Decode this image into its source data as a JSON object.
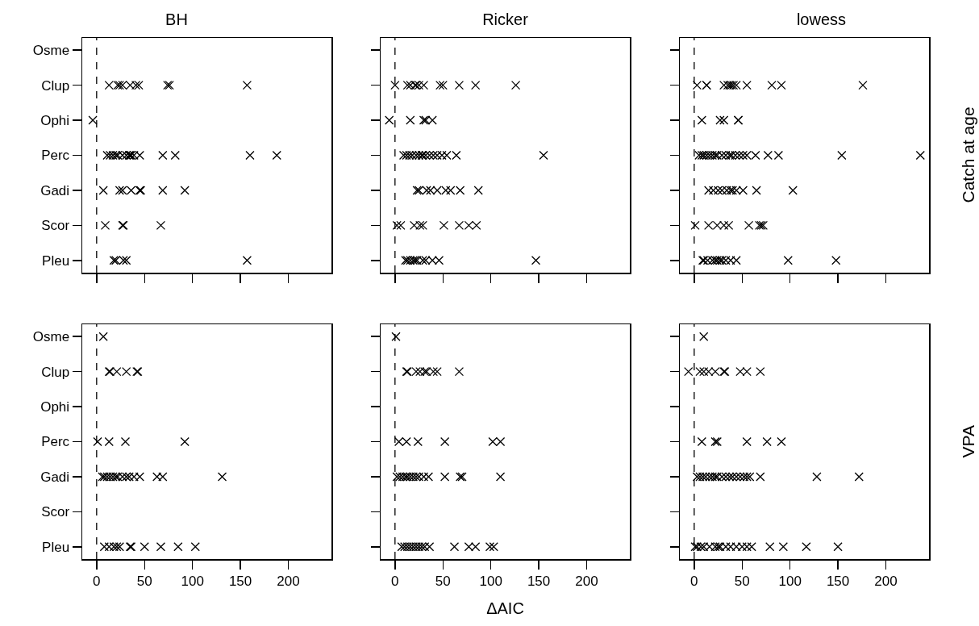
{
  "chart_data": [
    {
      "type": "scatter",
      "title": "BH",
      "orientation": "horizontal",
      "tick_labels": "y",
      "categories": [
        "Osme",
        "Clup",
        "Ophi",
        "Perc",
        "Gadi",
        "Scor",
        "Pleu"
      ],
      "xlim": [
        -15,
        245
      ],
      "xticks": [
        {
          "value": 0,
          "label": null
        },
        {
          "value": 50,
          "label": null
        },
        {
          "value": 100,
          "label": null
        },
        {
          "value": 150,
          "label": null
        },
        {
          "value": 200,
          "label": null
        }
      ],
      "grid": false,
      "marker": "cross",
      "ref_lines": [
        {
          "axis": "x",
          "value": 0,
          "line_style": "dashed"
        }
      ],
      "series": [
        {
          "color": "#000000",
          "values": [
            13,
            22,
            24,
            27,
            35,
            41,
            44,
            74,
            76,
            157,
            -4,
            11,
            14,
            17,
            20,
            22,
            27,
            31,
            34,
            35,
            36,
            39,
            45,
            69,
            82,
            160,
            188,
            7,
            24,
            27,
            36,
            45,
            46,
            69,
            92,
            9,
            27,
            28,
            67,
            18,
            20,
            28,
            31,
            157
          ],
          "x": [
            "Clup",
            "Clup",
            "Clup",
            "Clup",
            "Clup",
            "Clup",
            "Clup",
            "Clup",
            "Clup",
            "Clup",
            "Ophi",
            "Perc",
            "Perc",
            "Perc",
            "Perc",
            "Perc",
            "Perc",
            "Perc",
            "Perc",
            "Perc",
            "Perc",
            "Perc",
            "Perc",
            "Perc",
            "Perc",
            "Perc",
            "Perc",
            "Gadi",
            "Gadi",
            "Gadi",
            "Gadi",
            "Gadi",
            "Gadi",
            "Gadi",
            "Gadi",
            "Scor",
            "Scor",
            "Scor",
            "Scor",
            "Pleu",
            "Pleu",
            "Pleu",
            "Pleu",
            "Pleu"
          ]
        }
      ]
    },
    {
      "type": "scatter",
      "title": "Ricker",
      "orientation": "horizontal",
      "tick_labels": false,
      "categories": [
        "Osme",
        "Clup",
        "Ophi",
        "Perc",
        "Gadi",
        "Scor",
        "Pleu"
      ],
      "xlim": [
        -15,
        245
      ],
      "xticks": [
        {
          "value": 0,
          "label": null
        },
        {
          "value": 50,
          "label": null
        },
        {
          "value": 100,
          "label": null
        },
        {
          "value": 150,
          "label": null
        },
        {
          "value": 200,
          "label": null
        }
      ],
      "grid": false,
      "marker": "cross",
      "ref_lines": [
        {
          "axis": "x",
          "value": 0,
          "line_style": "dashed"
        }
      ],
      "series": [
        {
          "color": "#000000",
          "values": [
            0,
            13,
            16,
            21,
            22,
            25,
            30,
            47,
            50,
            67,
            84,
            126,
            -6,
            16,
            30,
            32,
            39,
            9,
            12,
            15,
            18,
            22,
            25,
            28,
            29,
            32,
            36,
            40,
            44,
            49,
            54,
            64,
            155,
            23,
            25,
            33,
            37,
            44,
            53,
            58,
            68,
            87,
            2,
            6,
            20,
            26,
            29,
            51,
            67,
            77,
            85,
            11,
            13,
            16,
            19,
            21,
            23,
            29,
            32,
            39,
            46,
            147
          ],
          "x": [
            "Clup",
            "Clup",
            "Clup",
            "Clup",
            "Clup",
            "Clup",
            "Clup",
            "Clup",
            "Clup",
            "Clup",
            "Clup",
            "Clup",
            "Ophi",
            "Ophi",
            "Ophi",
            "Ophi",
            "Ophi",
            "Perc",
            "Perc",
            "Perc",
            "Perc",
            "Perc",
            "Perc",
            "Perc",
            "Perc",
            "Perc",
            "Perc",
            "Perc",
            "Perc",
            "Perc",
            "Perc",
            "Perc",
            "Perc",
            "Gadi",
            "Gadi",
            "Gadi",
            "Gadi",
            "Gadi",
            "Gadi",
            "Gadi",
            "Gadi",
            "Gadi",
            "Scor",
            "Scor",
            "Scor",
            "Scor",
            "Scor",
            "Scor",
            "Scor",
            "Scor",
            "Scor",
            "Pleu",
            "Pleu",
            "Pleu",
            "Pleu",
            "Pleu",
            "Pleu",
            "Pleu",
            "Pleu",
            "Pleu",
            "Pleu",
            "Pleu"
          ]
        }
      ]
    },
    {
      "type": "scatter",
      "title": "lowess",
      "orientation": "horizontal",
      "tick_labels": false,
      "annotations": [
        "Catch at age"
      ],
      "categories": [
        "Osme",
        "Clup",
        "Ophi",
        "Perc",
        "Gadi",
        "Scor",
        "Pleu"
      ],
      "xlim": [
        -15,
        245
      ],
      "xticks": [
        {
          "value": 0,
          "label": null
        },
        {
          "value": 50,
          "label": null
        },
        {
          "value": 100,
          "label": null
        },
        {
          "value": 150,
          "label": null
        },
        {
          "value": 200,
          "label": null
        }
      ],
      "grid": false,
      "marker": "cross",
      "ref_lines": [
        {
          "axis": "x",
          "value": 0,
          "line_style": "dashed"
        }
      ],
      "series": [
        {
          "color": "#000000",
          "values": [
            3,
            13,
            13,
            31,
            35,
            37,
            39,
            41,
            44,
            55,
            81,
            91,
            176,
            8,
            27,
            31,
            46,
            46,
            5,
            8,
            10,
            13,
            16,
            19,
            22,
            24,
            29,
            33,
            37,
            39,
            43,
            47,
            51,
            55,
            64,
            77,
            88,
            154,
            236,
            15,
            20,
            25,
            29,
            34,
            38,
            40,
            44,
            51,
            65,
            103,
            1,
            15,
            24,
            31,
            36,
            57,
            68,
            70,
            72,
            9,
            10,
            14,
            19,
            22,
            24,
            27,
            29,
            33,
            38,
            44,
            98,
            148
          ],
          "x": [
            "Clup",
            "Clup",
            "Clup",
            "Clup",
            "Clup",
            "Clup",
            "Clup",
            "Clup",
            "Clup",
            "Clup",
            "Clup",
            "Clup",
            "Clup",
            "Ophi",
            "Ophi",
            "Ophi",
            "Ophi",
            "Ophi",
            "Perc",
            "Perc",
            "Perc",
            "Perc",
            "Perc",
            "Perc",
            "Perc",
            "Perc",
            "Perc",
            "Perc",
            "Perc",
            "Perc",
            "Perc",
            "Perc",
            "Perc",
            "Perc",
            "Perc",
            "Perc",
            "Perc",
            "Perc",
            "Perc",
            "Gadi",
            "Gadi",
            "Gadi",
            "Gadi",
            "Gadi",
            "Gadi",
            "Gadi",
            "Gadi",
            "Gadi",
            "Gadi",
            "Gadi",
            "Scor",
            "Scor",
            "Scor",
            "Scor",
            "Scor",
            "Scor",
            "Scor",
            "Scor",
            "Scor",
            "Pleu",
            "Pleu",
            "Pleu",
            "Pleu",
            "Pleu",
            "Pleu",
            "Pleu",
            "Pleu",
            "Pleu",
            "Pleu",
            "Pleu",
            "Pleu",
            "Pleu"
          ]
        }
      ]
    },
    {
      "type": "scatter",
      "orientation": "horizontal",
      "categories": [
        "Osme",
        "Clup",
        "Ophi",
        "Perc",
        "Gadi",
        "Scor",
        "Pleu"
      ],
      "xlim": [
        -15,
        245
      ],
      "xticks": [
        0,
        50,
        100,
        150,
        200
      ],
      "grid": false,
      "marker": "cross",
      "ref_lines": [
        {
          "axis": "x",
          "value": 0,
          "line_style": "dashed"
        }
      ],
      "series": [
        {
          "color": "#000000",
          "values": [
            7,
            13,
            14,
            21,
            31,
            42,
            43,
            1,
            13,
            30,
            92,
            6,
            8,
            11,
            14,
            17,
            20,
            22,
            27,
            31,
            34,
            39,
            45,
            63,
            69,
            131,
            8,
            13,
            18,
            21,
            24,
            35,
            36,
            50,
            67,
            85,
            103
          ],
          "x": [
            "Osme",
            "Clup",
            "Clup",
            "Clup",
            "Clup",
            "Clup",
            "Clup",
            "Perc",
            "Perc",
            "Perc",
            "Perc",
            "Gadi",
            "Gadi",
            "Gadi",
            "Gadi",
            "Gadi",
            "Gadi",
            "Gadi",
            "Gadi",
            "Gadi",
            "Gadi",
            "Gadi",
            "Gadi",
            "Gadi",
            "Gadi",
            "Gadi",
            "Pleu",
            "Pleu",
            "Pleu",
            "Pleu",
            "Pleu",
            "Pleu",
            "Pleu",
            "Pleu",
            "Pleu",
            "Pleu",
            "Pleu"
          ]
        }
      ]
    },
    {
      "type": "scatter",
      "orientation": "horizontal",
      "xlabel": "ΔAIC",
      "tick_labels": "x",
      "categories": [
        "Osme",
        "Clup",
        "Ophi",
        "Perc",
        "Gadi",
        "Scor",
        "Pleu"
      ],
      "xlim": [
        -15,
        245
      ],
      "xticks": [
        0,
        50,
        100,
        150,
        200
      ],
      "grid": false,
      "marker": "cross",
      "ref_lines": [
        {
          "axis": "x",
          "value": 0,
          "line_style": "dashed"
        }
      ],
      "series": [
        {
          "color": "#000000",
          "values": [
            1,
            12,
            13,
            22,
            26,
            31,
            33,
            40,
            44,
            67,
            4,
            12,
            24,
            52,
            102,
            110,
            2,
            5,
            8,
            11,
            13,
            16,
            19,
            22,
            25,
            30,
            35,
            52,
            68,
            70,
            110,
            7,
            10,
            13,
            16,
            19,
            22,
            25,
            28,
            31,
            36,
            62,
            77,
            84,
            99,
            103
          ],
          "x": [
            "Osme",
            "Clup",
            "Clup",
            "Clup",
            "Clup",
            "Clup",
            "Clup",
            "Clup",
            "Clup",
            "Clup",
            "Perc",
            "Perc",
            "Perc",
            "Perc",
            "Perc",
            "Perc",
            "Gadi",
            "Gadi",
            "Gadi",
            "Gadi",
            "Gadi",
            "Gadi",
            "Gadi",
            "Gadi",
            "Gadi",
            "Gadi",
            "Gadi",
            "Gadi",
            "Gadi",
            "Gadi",
            "Gadi",
            "Pleu",
            "Pleu",
            "Pleu",
            "Pleu",
            "Pleu",
            "Pleu",
            "Pleu",
            "Pleu",
            "Pleu",
            "Pleu",
            "Pleu",
            "Pleu",
            "Pleu",
            "Pleu",
            "Pleu"
          ]
        }
      ]
    },
    {
      "type": "scatter",
      "orientation": "horizontal",
      "tick_labels": "x",
      "annotations": [
        "VPA"
      ],
      "categories": [
        "Osme",
        "Clup",
        "Ophi",
        "Perc",
        "Gadi",
        "Scor",
        "Pleu"
      ],
      "xlim": [
        -15,
        245
      ],
      "xticks": [
        0,
        50,
        100,
        150,
        200
      ],
      "grid": false,
      "marker": "cross",
      "ref_lines": [
        {
          "axis": "x",
          "value": 0,
          "line_style": "dashed"
        }
      ],
      "series": [
        {
          "color": "#000000",
          "values": [
            10,
            -6,
            6,
            10,
            15,
            22,
            31,
            32,
            48,
            55,
            69,
            8,
            22,
            24,
            55,
            76,
            91,
            3,
            6,
            9,
            12,
            16,
            19,
            22,
            24,
            29,
            33,
            37,
            40,
            44,
            48,
            52,
            55,
            58,
            69,
            128,
            172,
            1,
            3,
            7,
            10,
            16,
            22,
            25,
            27,
            33,
            38,
            44,
            50,
            55,
            60,
            79,
            93,
            117,
            150
          ],
          "x": [
            "Osme",
            "Clup",
            "Clup",
            "Clup",
            "Clup",
            "Clup",
            "Clup",
            "Clup",
            "Clup",
            "Clup",
            "Clup",
            "Perc",
            "Perc",
            "Perc",
            "Perc",
            "Perc",
            "Perc",
            "Gadi",
            "Gadi",
            "Gadi",
            "Gadi",
            "Gadi",
            "Gadi",
            "Gadi",
            "Gadi",
            "Gadi",
            "Gadi",
            "Gadi",
            "Gadi",
            "Gadi",
            "Gadi",
            "Gadi",
            "Gadi",
            "Gadi",
            "Gadi",
            "Gadi",
            "Gadi",
            "Pleu",
            "Pleu",
            "Pleu",
            "Pleu",
            "Pleu",
            "Pleu",
            "Pleu",
            "Pleu",
            "Pleu",
            "Pleu",
            "Pleu",
            "Pleu",
            "Pleu",
            "Pleu",
            "Pleu",
            "Pleu",
            "Pleu",
            "Pleu"
          ]
        }
      ]
    }
  ]
}
